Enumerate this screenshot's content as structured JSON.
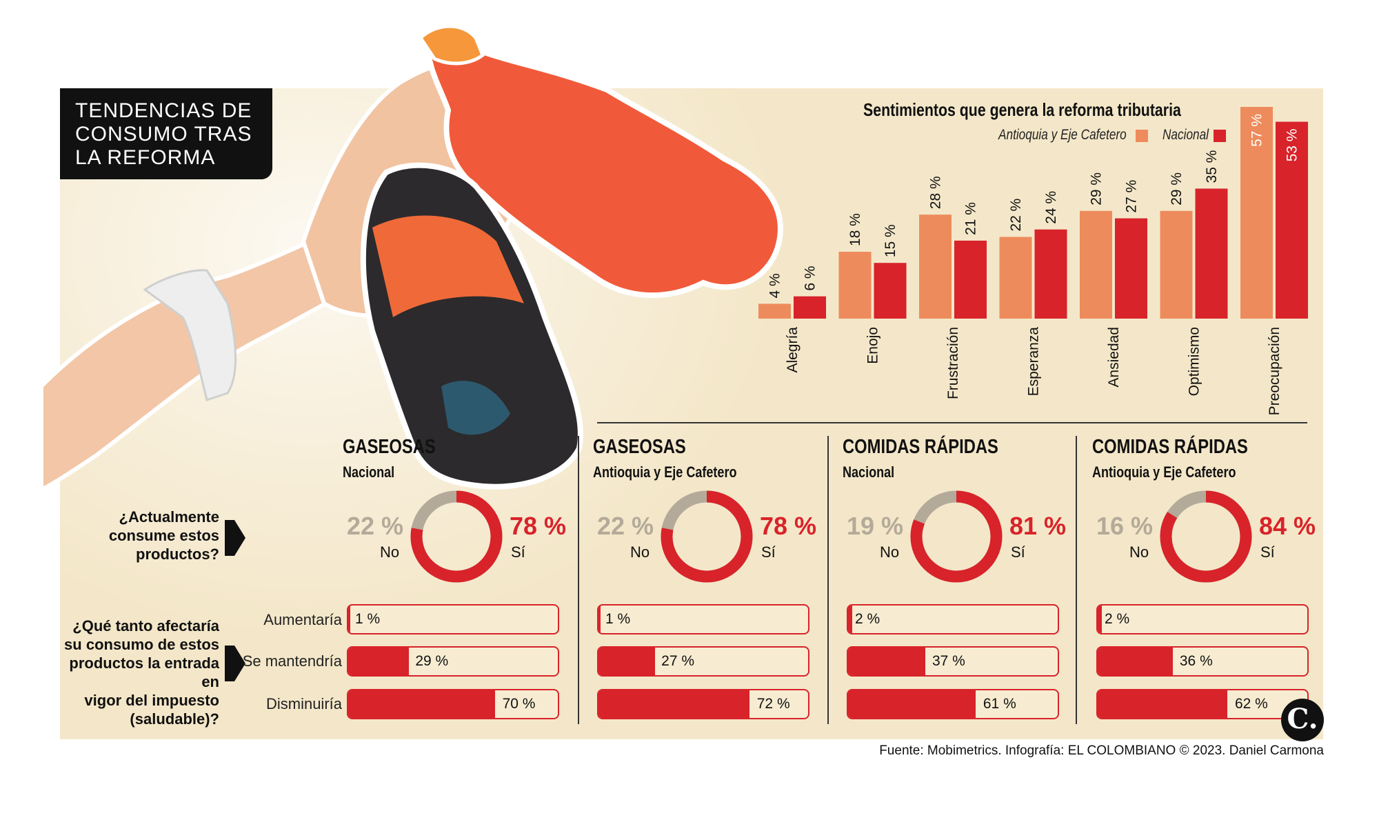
{
  "title": {
    "lines": [
      "TENDENCIAS DE",
      "CONSUMO TRAS",
      "LA REFORMA"
    ]
  },
  "colors": {
    "antioquia": "#ee8b5c",
    "nacional": "#d8232a",
    "no_ring": "#b3aa99",
    "background": "#f4e7c9"
  },
  "chart_data": [
    {
      "type": "bar",
      "title": "Sentimientos que genera la reforma tributaria",
      "categories": [
        "Alegría",
        "Enojo",
        "Frustración",
        "Esperanza",
        "Ansiedad",
        "Optimismo",
        "Preocupación"
      ],
      "series": [
        {
          "name": "Antioquia y Eje Cafetero",
          "values": [
            4,
            18,
            28,
            22,
            29,
            29,
            57
          ]
        },
        {
          "name": "Nacional",
          "values": [
            6,
            15,
            21,
            24,
            27,
            35,
            53
          ]
        }
      ],
      "value_suffix": " %",
      "ylim": [
        0,
        57
      ],
      "legend_position": "top-right",
      "grid": false
    },
    {
      "type": "pie",
      "question": "¿Actualmente consume estos productos?",
      "groups": [
        {
          "head": "GASEOSAS",
          "sub": "Nacional",
          "no": 22,
          "si": 78
        },
        {
          "head": "GASEOSAS",
          "sub": "Antioquia y Eje Cafetero",
          "no": 22,
          "si": 78
        },
        {
          "head": "COMIDAS RÁPIDAS",
          "sub": "Nacional",
          "no": 19,
          "si": 81
        },
        {
          "head": "COMIDAS RÁPIDAS",
          "sub": "Antioquia y Eje Cafetero",
          "no": 16,
          "si": 84
        }
      ],
      "labels": {
        "no": "No",
        "si": "Sí"
      }
    },
    {
      "type": "bar",
      "question": "¿Qué tanto afectaría su consumo de estos productos la entrada en vigor del impuesto (saludable)?",
      "categories": [
        "Aumentaría",
        "Se mantendría",
        "Disminuiría"
      ],
      "series": [
        {
          "name": "GASEOSAS Nacional",
          "values": [
            1,
            29,
            70
          ]
        },
        {
          "name": "GASEOSAS Antioquia y Eje Cafetero",
          "values": [
            1,
            27,
            72
          ]
        },
        {
          "name": "COMIDAS RÁPIDAS Nacional",
          "values": [
            2,
            37,
            61
          ]
        },
        {
          "name": "COMIDAS RÁPIDAS Antioquia y Eje Cafetero",
          "values": [
            2,
            36,
            62
          ]
        }
      ],
      "xlim": [
        0,
        100
      ]
    }
  ],
  "questions": {
    "q1_lines": [
      "¿Actualmente",
      "consume estos",
      "productos?"
    ],
    "q2_lines": [
      "¿Qué tanto afectaría",
      "su consumo de estos",
      "productos la entrada en",
      "vigor del impuesto",
      "(saludable)?"
    ]
  },
  "source": "Fuente: Mobimetrics. Infografía: EL COLOMBIANO © 2023. Daniel Carmona",
  "logo_text": "C."
}
